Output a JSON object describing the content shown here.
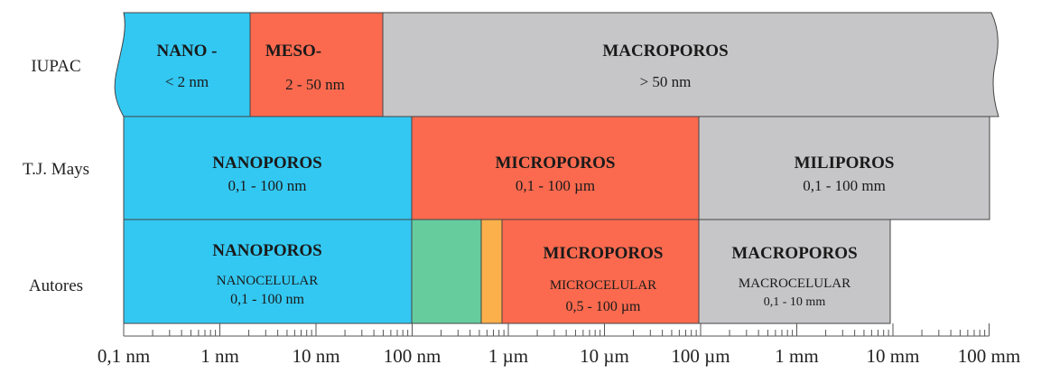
{
  "colors": {
    "blue": "#33c8f2",
    "red": "#fb6a4f",
    "gray": "#c6c6c8",
    "green": "#66cc9e",
    "orange": "#fcb04c",
    "border": "#444444"
  },
  "rows": {
    "iupac": {
      "label": "IUPAC",
      "nano_title": "NANO -",
      "nano_range": "< 2 nm",
      "meso_title": "MESO-",
      "meso_range": "2 - 50 nm",
      "macro_title": "MACROPOROS",
      "macro_range": "> 50 nm"
    },
    "mays": {
      "label": "T.J. Mays",
      "nano_title": "NANOPOROS",
      "nano_range": "0,1 - 100 nm",
      "micro_title": "MICROPOROS",
      "micro_range": "0,1 - 100 µm",
      "mili_title": "MILIPOROS",
      "mili_range": "0,1 - 100 mm"
    },
    "autores": {
      "label": "Autores",
      "nano_title": "NANOPOROS",
      "nano_sub": "NANOCELULAR",
      "nano_range": "0,1 - 100 nm",
      "micro_title": "MICROPOROS",
      "micro_sub": "MICROCELULAR",
      "micro_range": "0,5 - 100 µm",
      "macro_title": "MACROPOROS",
      "macro_sub": "MACROCELULAR",
      "macro_range": "0,1 - 10 mm"
    }
  },
  "axis": {
    "type": "log",
    "tick_labels": [
      "0,1 nm",
      "1 nm",
      "10 nm",
      "100 nm",
      "1 µm",
      "10 µm",
      "100 µm",
      "1 mm",
      "10 mm",
      "100 mm"
    ]
  }
}
